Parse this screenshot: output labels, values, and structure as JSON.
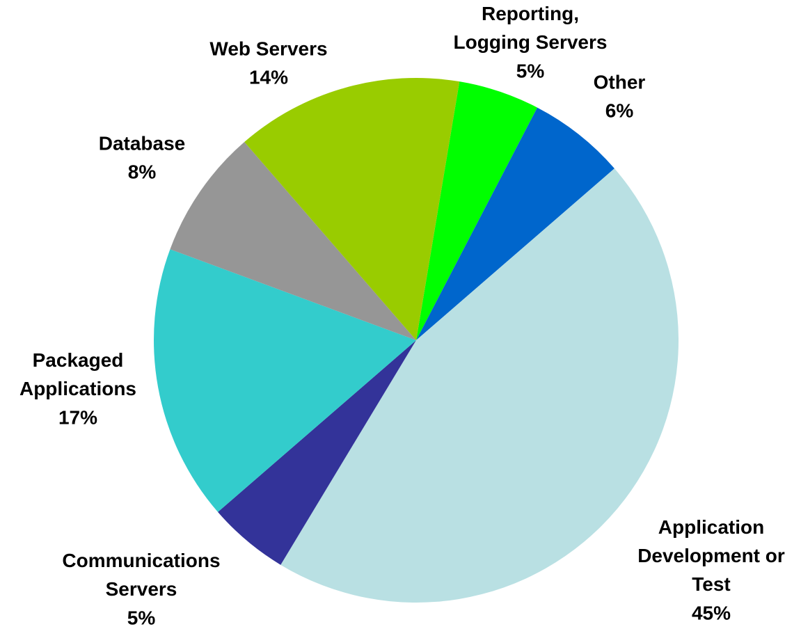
{
  "chart_data": {
    "type": "pie",
    "categories": [
      "Reporting,\nLogging Servers",
      "Other",
      "Application\nDevelopment or\nTest",
      "Communications\nServers",
      "Packaged\nApplications",
      "Database",
      "Web Servers"
    ],
    "values": [
      5,
      6,
      45,
      5,
      17,
      8,
      14
    ],
    "value_labels": [
      "5%",
      "6%",
      "45%",
      "5%",
      "17%",
      "8%",
      "14%"
    ],
    "colors": [
      "#00ff00",
      "#0066cc",
      "#b9e0e3",
      "#333399",
      "#33cccc",
      "#969696",
      "#99cc00"
    ]
  }
}
